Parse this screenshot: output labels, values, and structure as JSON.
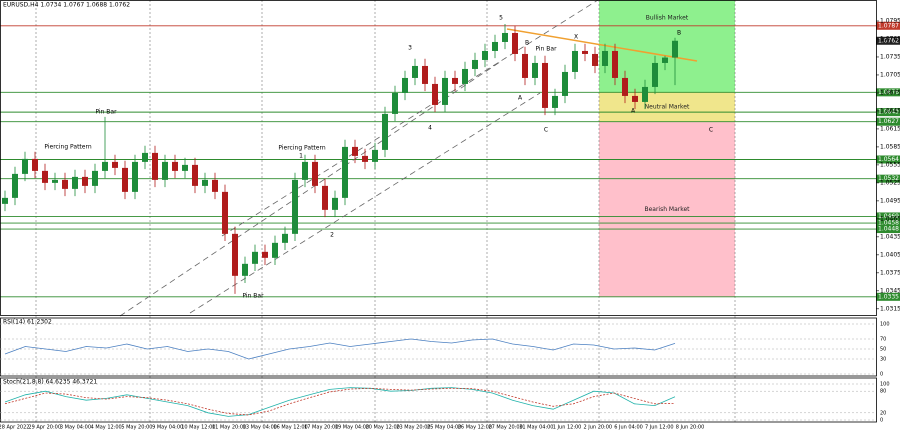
{
  "chart_data": {
    "type": "candlestick",
    "title": "EURUSD,H4 1.0734 1.0767 1.0688 1.0762",
    "categories": [
      "28 Apr 2022",
      "29 Apr 20:00",
      "3 May 04:00",
      "4 May 12:00",
      "5 May 20:00",
      "9 May 04:00",
      "10 May 12:00",
      "11 May 20:00",
      "13 May 04:00",
      "16 May 12:00",
      "17 May 20:00",
      "19 May 04:00",
      "20 May 12:00",
      "23 May 20:00",
      "25 May 04:00",
      "26 May 12:00",
      "27 May 20:00",
      "31 May 04:00",
      "1 Jun 12:00",
      "2 Jun 20:00",
      "6 Jun 04:00",
      "7 Jun 12:00",
      "8 Jun 20:00"
    ],
    "up_color": "#1e8c3a",
    "down_color": "#b01c1c",
    "candles": [
      [
        1.049,
        1.0512,
        1.0478,
        1.05
      ],
      [
        1.05,
        1.0552,
        1.0488,
        1.054
      ],
      [
        1.054,
        1.0577,
        1.0528,
        1.0565
      ],
      [
        1.0565,
        1.0577,
        1.0533,
        1.0545
      ],
      [
        1.0545,
        1.0557,
        1.0513,
        1.0525
      ],
      [
        1.0525,
        1.0542,
        1.0513,
        1.053
      ],
      [
        1.053,
        1.0542,
        1.0503,
        1.0515
      ],
      [
        1.0515,
        1.0547,
        1.0503,
        1.0535
      ],
      [
        1.0535,
        1.0547,
        1.0508,
        1.052
      ],
      [
        1.052,
        1.0557,
        1.0508,
        1.0545
      ],
      [
        1.0545,
        1.0635,
        1.0533,
        1.056
      ],
      [
        1.056,
        1.0572,
        1.0538,
        1.055
      ],
      [
        1.055,
        1.0562,
        1.0498,
        1.051
      ],
      [
        1.051,
        1.0572,
        1.0498,
        1.056
      ],
      [
        1.056,
        1.0587,
        1.0548,
        1.0575
      ],
      [
        1.0575,
        1.0587,
        1.0518,
        1.053
      ],
      [
        1.053,
        1.0572,
        1.0518,
        1.056
      ],
      [
        1.056,
        1.0572,
        1.0533,
        1.0545
      ],
      [
        1.0545,
        1.0567,
        1.0533,
        1.0555
      ],
      [
        1.0555,
        1.0567,
        1.0508,
        1.052
      ],
      [
        1.052,
        1.0542,
        1.0508,
        1.053
      ],
      [
        1.053,
        1.0542,
        1.0498,
        1.051
      ],
      [
        1.051,
        1.0522,
        1.0428,
        1.044
      ],
      [
        1.044,
        1.0452,
        1.034,
        1.037
      ],
      [
        1.037,
        1.0402,
        1.0358,
        1.039
      ],
      [
        1.039,
        1.0422,
        1.0378,
        1.041
      ],
      [
        1.041,
        1.0422,
        1.0388,
        1.04
      ],
      [
        1.04,
        1.0437,
        1.0388,
        1.0425
      ],
      [
        1.0425,
        1.0452,
        1.0413,
        1.044
      ],
      [
        1.044,
        1.0542,
        1.0428,
        1.053
      ],
      [
        1.053,
        1.0572,
        1.0518,
        1.056
      ],
      [
        1.056,
        1.0572,
        1.0508,
        1.052
      ],
      [
        1.052,
        1.0532,
        1.0468,
        1.048
      ],
      [
        1.048,
        1.0512,
        1.0468,
        1.05
      ],
      [
        1.05,
        1.0597,
        1.0488,
        1.0585
      ],
      [
        1.0585,
        1.0597,
        1.0558,
        1.057
      ],
      [
        1.057,
        1.0582,
        1.0548,
        1.056
      ],
      [
        1.056,
        1.0592,
        1.0548,
        1.058
      ],
      [
        1.058,
        1.0652,
        1.0568,
        1.064
      ],
      [
        1.064,
        1.0687,
        1.0628,
        1.0675
      ],
      [
        1.0675,
        1.0712,
        1.0663,
        1.07
      ],
      [
        1.07,
        1.0732,
        1.0688,
        1.072
      ],
      [
        1.072,
        1.0732,
        1.0678,
        1.069
      ],
      [
        1.069,
        1.0702,
        1.0643,
        1.0655
      ],
      [
        1.0655,
        1.0712,
        1.0643,
        1.07
      ],
      [
        1.07,
        1.0712,
        1.0678,
        1.069
      ],
      [
        1.069,
        1.0727,
        1.0678,
        1.0715
      ],
      [
        1.0715,
        1.0742,
        1.0703,
        1.073
      ],
      [
        1.073,
        1.0757,
        1.0718,
        1.0745
      ],
      [
        1.0745,
        1.0772,
        1.0733,
        1.076
      ],
      [
        1.076,
        1.079,
        1.0748,
        1.0775
      ],
      [
        1.0775,
        1.0787,
        1.0728,
        1.074
      ],
      [
        1.074,
        1.0752,
        1.0688,
        1.07
      ],
      [
        1.07,
        1.0737,
        1.0688,
        1.0725
      ],
      [
        1.0725,
        1.0737,
        1.0638,
        1.065
      ],
      [
        1.065,
        1.0682,
        1.0638,
        1.067
      ],
      [
        1.067,
        1.0722,
        1.0658,
        1.071
      ],
      [
        1.071,
        1.0757,
        1.0698,
        1.0745
      ],
      [
        1.0745,
        1.0757,
        1.0728,
        1.074
      ],
      [
        1.074,
        1.0752,
        1.0708,
        1.072
      ],
      [
        1.072,
        1.0757,
        1.0708,
        1.0745
      ],
      [
        1.0745,
        1.0757,
        1.0688,
        1.07
      ],
      [
        1.07,
        1.0712,
        1.0658,
        1.067
      ],
      [
        1.067,
        1.0682,
        1.0648,
        1.066
      ],
      [
        1.066,
        1.0697,
        1.0648,
        1.0685
      ],
      [
        1.0685,
        1.0737,
        1.0673,
        1.0725
      ],
      [
        1.0725,
        1.0737,
        1.0713,
        1.0734
      ],
      [
        1.0734,
        1.0767,
        1.0688,
        1.0762
      ]
    ],
    "ylim": [
      1.0303,
      1.083
    ],
    "yticks": [
      1.0315,
      1.0345,
      1.0375,
      1.0405,
      1.0435,
      1.0465,
      1.0495,
      1.0525,
      1.0555,
      1.0585,
      1.0615,
      1.0645,
      1.0675,
      1.0705,
      1.0735,
      1.0765,
      1.0795
    ],
    "levels": [
      {
        "value": 1.0787,
        "color": "#c0392b"
      },
      {
        "value": 1.0762,
        "color": "#222222"
      },
      {
        "value": 1.0676,
        "color": "#2e8b2e"
      },
      {
        "value": 1.0643,
        "color": "#2e8b2e"
      },
      {
        "value": 1.0627,
        "color": "#2e8b2e"
      },
      {
        "value": 1.0564,
        "color": "#2e8b2e"
      },
      {
        "value": 1.0532,
        "color": "#2e8b2e"
      },
      {
        "value": 1.0469,
        "color": "#2e8b2e"
      },
      {
        "value": 1.0458,
        "color": "#2e8b2e"
      },
      {
        "value": 1.0448,
        "color": "#2e8b2e"
      },
      {
        "value": 1.0335,
        "color": "#2e8b2e"
      }
    ],
    "zones": [
      {
        "label": "Bullish Market",
        "low": 1.0676,
        "color": "#8ef08e"
      },
      {
        "label": "Neutral Market",
        "low": 1.0627,
        "high": 1.0676,
        "color": "#f0e68c"
      },
      {
        "label": "Bearish Market",
        "low": 1.0335,
        "high": 1.0627,
        "color": "#ffc0cb"
      }
    ],
    "annotations": [
      "Pin Bar",
      "Piercing Pattern",
      "Piercing Pattern",
      "1",
      "2",
      "3",
      "4",
      "5",
      "B",
      "Pin Bar",
      "A",
      "C",
      "X",
      "B",
      "A",
      "C",
      "Pin Bar"
    ],
    "rsi": {
      "label": "RSI(14) 61.2302",
      "color": "#4a7fc1",
      "ylim": [
        0,
        100
      ],
      "yticks": [
        0,
        30,
        50,
        70,
        100
      ],
      "values": [
        40,
        55,
        50,
        45,
        55,
        52,
        60,
        50,
        55,
        45,
        50,
        45,
        30,
        40,
        50,
        55,
        62,
        55,
        60,
        65,
        70,
        65,
        62,
        68,
        70,
        60,
        55,
        48,
        60,
        58,
        50,
        52,
        48,
        61.2302
      ]
    },
    "stoch": {
      "label": "Stoch(21,8,8) 64.6235 46.3721",
      "ylim": [
        0,
        100
      ],
      "yticks": [
        0,
        20,
        80,
        100
      ],
      "series": [
        {
          "color": "#20b2aa",
          "values": [
            50,
            70,
            80,
            65,
            55,
            60,
            70,
            60,
            50,
            40,
            20,
            10,
            15,
            35,
            55,
            70,
            85,
            90,
            88,
            80,
            82,
            88,
            90,
            85,
            75,
            55,
            40,
            30,
            55,
            80,
            75,
            45,
            40,
            64.6235
          ]
        },
        {
          "color": "#c0392b",
          "values": [
            45,
            60,
            75,
            72,
            62,
            58,
            65,
            62,
            55,
            45,
            30,
            18,
            14,
            25,
            45,
            62,
            78,
            86,
            88,
            85,
            83,
            86,
            88,
            87,
            80,
            65,
            50,
            38,
            45,
            65,
            75,
            60,
            45,
            46.3721
          ]
        }
      ]
    }
  }
}
